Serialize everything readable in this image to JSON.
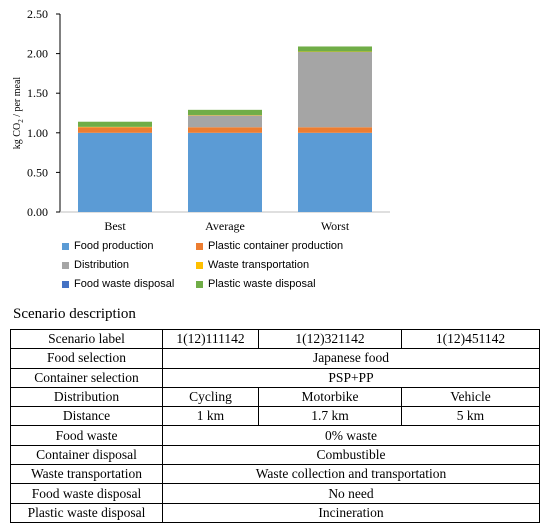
{
  "chart_data": {
    "type": "bar",
    "stacked": true,
    "categories": [
      "Best",
      "Average",
      "Worst"
    ],
    "ylabel": "kg CO2 / per meal",
    "ylim": [
      0,
      2.5
    ],
    "yticks": [
      "0.00",
      "0.50",
      "1.00",
      "1.50",
      "2.00",
      "2.50"
    ],
    "grid": false,
    "legend_position": "bottom",
    "series": [
      {
        "name": "Food production",
        "color": "#5B9BD5",
        "values": [
          1.0,
          1.0,
          1.0
        ]
      },
      {
        "name": "Plastic container production",
        "color": "#ED7D31",
        "values": [
          0.07,
          0.07,
          0.07
        ]
      },
      {
        "name": "Distribution",
        "color": "#A5A5A5",
        "values": [
          0.0,
          0.15,
          0.95
        ]
      },
      {
        "name": "Waste transportation",
        "color": "#FFC000",
        "values": [
          0.005,
          0.005,
          0.005
        ]
      },
      {
        "name": "Food waste disposal",
        "color": "#4472C4",
        "values": [
          0.0,
          0.0,
          0.0
        ]
      },
      {
        "name": "Plastic waste disposal",
        "color": "#70AD47",
        "values": [
          0.065,
          0.065,
          0.065
        ]
      }
    ]
  },
  "scenario": {
    "title": "Scenario description",
    "rows": [
      {
        "label": "Scenario label",
        "cells": [
          "1(12)111142",
          "1(12)321142",
          "1(12)451142"
        ]
      },
      {
        "label": "Food selection",
        "merged": "Japanese food"
      },
      {
        "label": "Container selection",
        "merged": "PSP+PP"
      },
      {
        "label": "Distribution",
        "cells": [
          "Cycling",
          "Motorbike",
          "Vehicle"
        ]
      },
      {
        "label": "Distance",
        "cells": [
          "1 km",
          "1.7 km",
          "5 km"
        ]
      },
      {
        "label": "Food waste",
        "merged": "0% waste"
      },
      {
        "label": "Container disposal",
        "merged": "Combustible"
      },
      {
        "label": "Waste transportation",
        "merged": "Waste collection and transportation"
      },
      {
        "label": "Food waste disposal",
        "merged": "No need"
      },
      {
        "label": "Plastic waste disposal",
        "merged": "Incineration"
      }
    ]
  }
}
